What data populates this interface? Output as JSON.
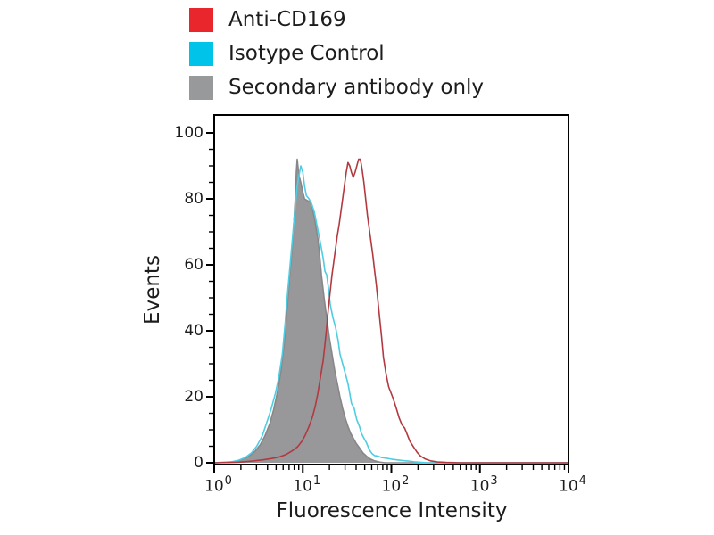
{
  "legend": {
    "items": [
      {
        "label": "Anti-CD169",
        "color": "#e8262c"
      },
      {
        "label": "Isotype Control",
        "color": "#00c3ea"
      },
      {
        "label": "Secondary antibody only",
        "color": "#98999b"
      }
    ]
  },
  "axis_color": "#000000",
  "chart_data": {
    "type": "area",
    "title": "",
    "xlabel": "Fluorescence Intensity",
    "ylabel": "Events",
    "x_scale": "log10",
    "xlim_exponents": [
      0,
      4
    ],
    "x_tick_exponents": [
      0,
      1,
      2,
      3,
      4
    ],
    "x_tick_base": "10",
    "y_ticks": [
      0,
      20,
      40,
      60,
      80,
      100
    ],
    "y_minor_step": 5,
    "ylim": [
      0,
      105
    ],
    "grid": false,
    "legend_position": "top-left-outside",
    "series": [
      {
        "name": "Secondary antibody only",
        "style": "filled",
        "fill_color": "#98989b",
        "line_color": "#87878a",
        "points": [
          [
            0,
            0
          ],
          [
            0.18,
            0.2
          ],
          [
            0.26,
            0.6
          ],
          [
            0.33,
            1.2
          ],
          [
            0.4,
            2.2
          ],
          [
            0.46,
            3.5
          ],
          [
            0.52,
            5.5
          ],
          [
            0.57,
            8
          ],
          [
            0.63,
            12
          ],
          [
            0.67,
            16
          ],
          [
            0.71,
            21
          ],
          [
            0.75,
            27
          ],
          [
            0.79,
            36
          ],
          [
            0.82,
            46
          ],
          [
            0.85,
            56
          ],
          [
            0.88,
            65
          ],
          [
            0.9,
            73
          ],
          [
            0.92,
            82
          ],
          [
            0.927,
            88
          ],
          [
            0.937,
            92
          ],
          [
            0.957,
            87
          ],
          [
            0.977,
            85
          ],
          [
            1.0,
            82
          ],
          [
            1.02,
            80
          ],
          [
            1.05,
            79.5
          ],
          [
            1.09,
            79
          ],
          [
            1.11,
            77
          ],
          [
            1.14,
            73
          ],
          [
            1.17,
            68
          ],
          [
            1.19,
            63
          ],
          [
            1.21,
            57
          ],
          [
            1.24,
            50
          ],
          [
            1.27,
            44
          ],
          [
            1.3,
            38
          ],
          [
            1.33,
            33
          ],
          [
            1.36,
            28
          ],
          [
            1.39,
            24
          ],
          [
            1.42,
            20
          ],
          [
            1.45,
            16.5
          ],
          [
            1.48,
            13.5
          ],
          [
            1.51,
            11
          ],
          [
            1.54,
            9
          ],
          [
            1.57,
            7.5
          ],
          [
            1.6,
            6
          ],
          [
            1.64,
            4.5
          ],
          [
            1.68,
            3
          ],
          [
            1.72,
            2
          ],
          [
            1.76,
            1.2
          ],
          [
            1.81,
            0.6
          ],
          [
            1.87,
            0.2
          ],
          [
            1.93,
            0
          ],
          [
            4,
            0
          ]
        ]
      },
      {
        "name": "Isotype Control",
        "style": "line",
        "line_color": "#4ecde2",
        "points": [
          [
            0,
            0
          ],
          [
            0.2,
            0.3
          ],
          [
            0.28,
            0.8
          ],
          [
            0.35,
            1.6
          ],
          [
            0.42,
            3
          ],
          [
            0.48,
            5
          ],
          [
            0.54,
            8
          ],
          [
            0.59,
            12
          ],
          [
            0.64,
            16
          ],
          [
            0.69,
            21
          ],
          [
            0.73,
            26
          ],
          [
            0.77,
            33
          ],
          [
            0.8,
            42
          ],
          [
            0.83,
            52
          ],
          [
            0.86,
            61
          ],
          [
            0.89,
            70
          ],
          [
            0.92,
            79
          ],
          [
            0.937,
            84
          ],
          [
            0.957,
            87
          ],
          [
            0.977,
            90
          ],
          [
            1.0,
            88
          ],
          [
            1.02,
            84
          ],
          [
            1.04,
            81
          ],
          [
            1.07,
            80
          ],
          [
            1.1,
            78.5
          ],
          [
            1.13,
            76
          ],
          [
            1.16,
            72
          ],
          [
            1.19,
            68
          ],
          [
            1.21,
            65
          ],
          [
            1.23,
            62
          ],
          [
            1.25,
            58
          ],
          [
            1.27,
            57
          ],
          [
            1.29,
            53
          ],
          [
            1.31,
            48
          ],
          [
            1.34,
            44
          ],
          [
            1.37,
            41
          ],
          [
            1.4,
            37
          ],
          [
            1.42,
            33
          ],
          [
            1.45,
            30
          ],
          [
            1.48,
            27
          ],
          [
            1.51,
            24
          ],
          [
            1.53,
            21
          ],
          [
            1.55,
            18
          ],
          [
            1.58,
            16.5
          ],
          [
            1.61,
            13
          ],
          [
            1.64,
            11
          ],
          [
            1.66,
            9
          ],
          [
            1.69,
            7.5
          ],
          [
            1.72,
            6
          ],
          [
            1.75,
            4
          ],
          [
            1.78,
            2.8
          ],
          [
            1.81,
            2.2
          ],
          [
            1.85,
            2
          ],
          [
            1.89,
            1.6
          ],
          [
            1.94,
            1.4
          ],
          [
            2.0,
            1.1
          ],
          [
            2.06,
            0.9
          ],
          [
            2.12,
            0.7
          ],
          [
            2.19,
            0.5
          ],
          [
            2.26,
            0.3
          ],
          [
            2.33,
            0.15
          ],
          [
            2.4,
            0
          ],
          [
            4,
            0
          ]
        ]
      },
      {
        "name": "Anti-CD169",
        "style": "line",
        "line_color": "#b23940",
        "points": [
          [
            0,
            0
          ],
          [
            0.28,
            0.2
          ],
          [
            0.43,
            0.5
          ],
          [
            0.55,
            0.9
          ],
          [
            0.65,
            1.3
          ],
          [
            0.74,
            1.8
          ],
          [
            0.81,
            2.5
          ],
          [
            0.88,
            3.6
          ],
          [
            0.94,
            4.8
          ],
          [
            0.99,
            6.5
          ],
          [
            1.03,
            8.5
          ],
          [
            1.07,
            11
          ],
          [
            1.11,
            14
          ],
          [
            1.14,
            17
          ],
          [
            1.17,
            21
          ],
          [
            1.2,
            26
          ],
          [
            1.23,
            31
          ],
          [
            1.25,
            36
          ],
          [
            1.27,
            41
          ],
          [
            1.29,
            47
          ],
          [
            1.31,
            52
          ],
          [
            1.33,
            57
          ],
          [
            1.35,
            61
          ],
          [
            1.37,
            65
          ],
          [
            1.39,
            69
          ],
          [
            1.41,
            72
          ],
          [
            1.43,
            76
          ],
          [
            1.45,
            80
          ],
          [
            1.47,
            84
          ],
          [
            1.49,
            88
          ],
          [
            1.51,
            91
          ],
          [
            1.53,
            90
          ],
          [
            1.55,
            88
          ],
          [
            1.57,
            86.5
          ],
          [
            1.59,
            88
          ],
          [
            1.61,
            90
          ],
          [
            1.63,
            92
          ],
          [
            1.65,
            92
          ],
          [
            1.67,
            89
          ],
          [
            1.69,
            85
          ],
          [
            1.71,
            80
          ],
          [
            1.73,
            75
          ],
          [
            1.76,
            69
          ],
          [
            1.79,
            63
          ],
          [
            1.81,
            58.5
          ],
          [
            1.83,
            54
          ],
          [
            1.86,
            46
          ],
          [
            1.89,
            38
          ],
          [
            1.91,
            32
          ],
          [
            1.94,
            27
          ],
          [
            1.97,
            23
          ],
          [
            2.02,
            19.5
          ],
          [
            2.05,
            17
          ],
          [
            2.09,
            13.5
          ],
          [
            2.12,
            11.5
          ],
          [
            2.15,
            10.5
          ],
          [
            2.18,
            8.5
          ],
          [
            2.21,
            6.5
          ],
          [
            2.25,
            4.8
          ],
          [
            2.29,
            3.2
          ],
          [
            2.33,
            2
          ],
          [
            2.38,
            1.2
          ],
          [
            2.44,
            0.6
          ],
          [
            2.52,
            0.25
          ],
          [
            2.62,
            0.1
          ],
          [
            2.77,
            0
          ],
          [
            4,
            0
          ]
        ]
      }
    ]
  }
}
